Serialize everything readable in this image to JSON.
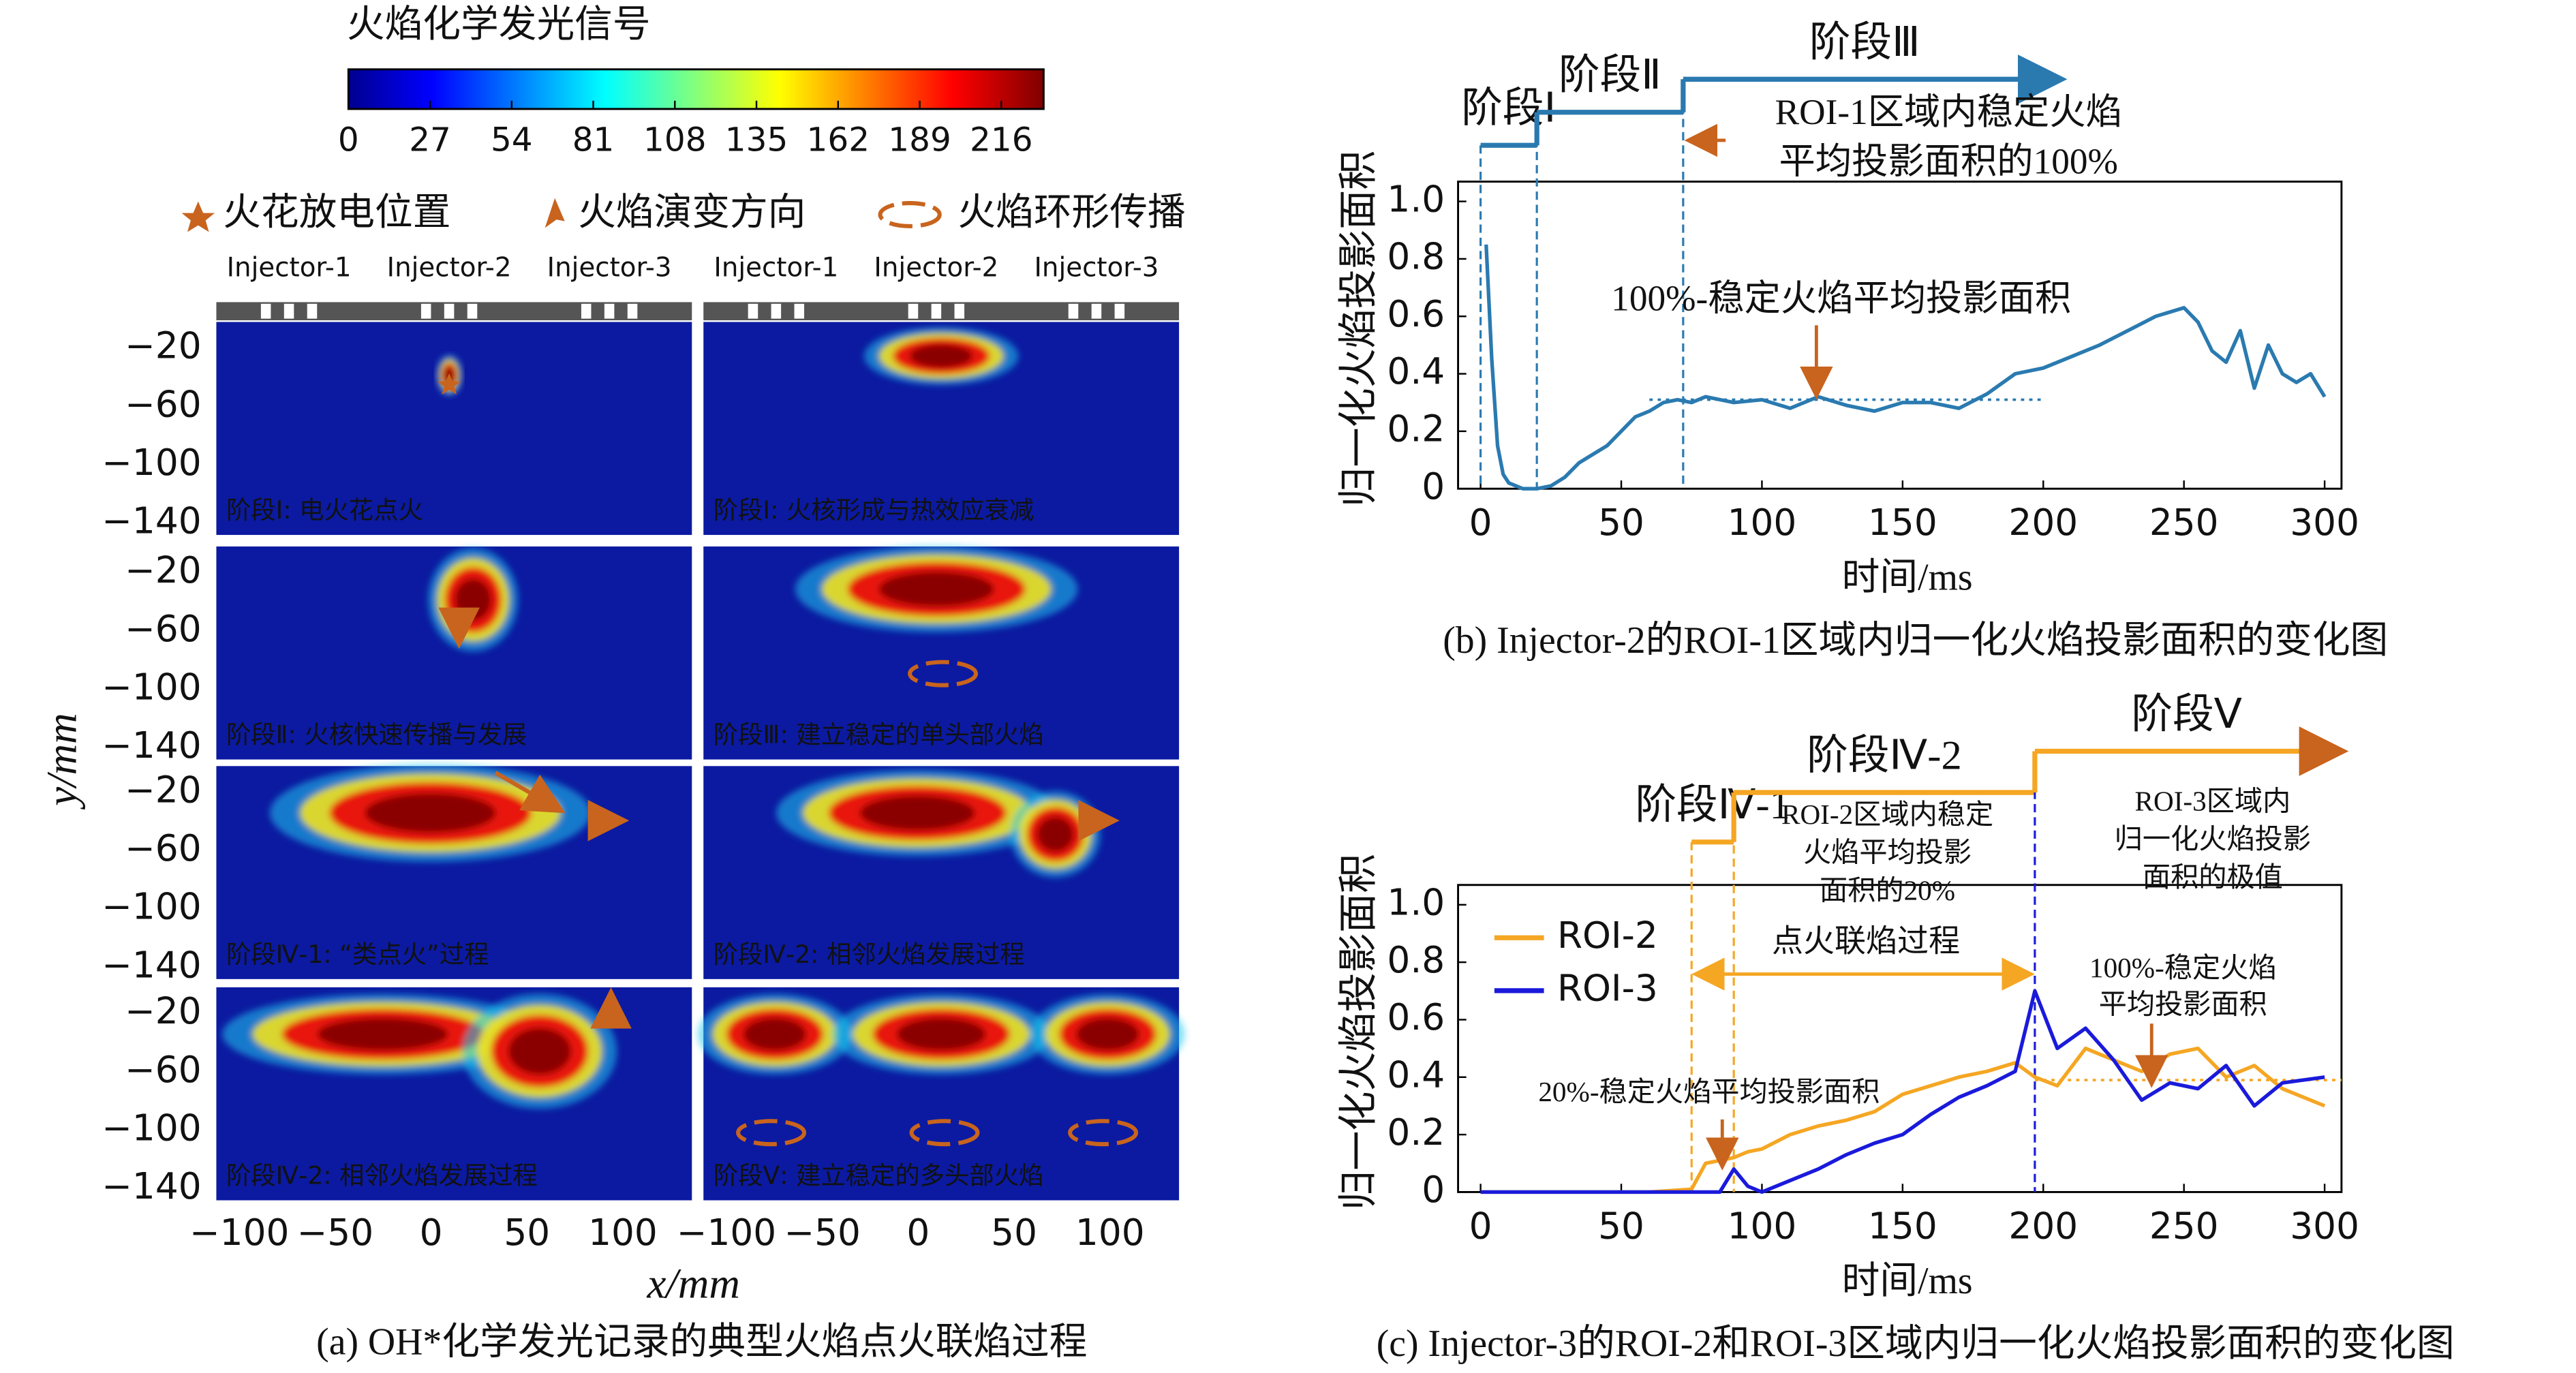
{
  "chart_data": [
    {
      "type": "image-grid",
      "colorbar_title": "火焰化学发光信号",
      "clim": [
        0,
        230
      ],
      "cticks": [
        0,
        27,
        54,
        81,
        108,
        135,
        162,
        189,
        216
      ],
      "legend": [
        "火花放电位置",
        "火焰演变方向",
        "火焰环形传播"
      ],
      "injectors": [
        "Injector-1",
        "Injector-2",
        "Injector-3"
      ],
      "panels": [
        "阶段Ⅰ: 电火花点火",
        "阶段Ⅰ: 火核形成与热效应衰减",
        "阶段Ⅱ: 火核快速传播与发展",
        "阶段Ⅲ: 建立稳定的单头部火焰",
        "阶段Ⅳ-1: “类点火”过程",
        "阶段Ⅳ-2: 相邻火焰发展过程",
        "阶段Ⅳ-2: 相邻火焰发展过程",
        "阶段Ⅴ: 建立稳定的多头部火焰"
      ],
      "xlim": [
        -112,
        136
      ],
      "xticks": [
        {
          "value": -100,
          "label": "−100"
        },
        {
          "value": -50,
          "label": "−50"
        },
        0,
        50,
        100
      ],
      "ylim": [
        -148,
        -2
      ],
      "yticks": [
        {
          "value": -20,
          "label": "−20"
        },
        {
          "value": -60,
          "label": "−60"
        },
        {
          "value": -100,
          "label": "−100"
        },
        {
          "value": -140,
          "label": "−140"
        }
      ],
      "xlabel": "x/mm",
      "ylabel": "y/mm",
      "caption": "(a) OH*化学发光记录的典型火焰点火联焰过程"
    },
    {
      "type": "line",
      "x": [
        2,
        4,
        6,
        8,
        10,
        15,
        20,
        25,
        30,
        35,
        40,
        45,
        50,
        55,
        60,
        65,
        70,
        75,
        80,
        90,
        100,
        110,
        120,
        130,
        140,
        150,
        160,
        170,
        180,
        190,
        200,
        210,
        220,
        230,
        240,
        250,
        255,
        260,
        265,
        270,
        275,
        280,
        285,
        290,
        295,
        300
      ],
      "series": [
        {
          "color": "#2a7ab0",
          "values": [
            0.85,
            0.45,
            0.15,
            0.05,
            0.02,
            0,
            0,
            0.01,
            0.04,
            0.09,
            0.12,
            0.15,
            0.2,
            0.25,
            0.27,
            0.3,
            0.31,
            0.3,
            0.32,
            0.3,
            0.31,
            0.28,
            0.32,
            0.29,
            0.27,
            0.3,
            0.3,
            0.28,
            0.33,
            0.4,
            0.42,
            0.46,
            0.5,
            0.55,
            0.6,
            0.63,
            0.58,
            0.48,
            0.44,
            0.55,
            0.35,
            0.5,
            0.4,
            0.37,
            0.4,
            0.32
          ]
        }
      ],
      "xlim": [
        -8,
        306
      ],
      "xticks": [
        0,
        50,
        100,
        150,
        200,
        250,
        300
      ],
      "ylim": [
        0,
        1
      ],
      "yticks": [
        0,
        0.2,
        0.4,
        0.6,
        0.8,
        {
          "value": 1,
          "label": "1.0"
        }
      ],
      "xlabel": "时间/ms",
      "ylabel": "归一化火焰投影面积",
      "caption": "(b) Injector-2的ROI-1区域内归一化火焰投影面积的变化图",
      "stage_color": "#2a7ab0",
      "stages": [
        {
          "label": "阶段Ⅰ",
          "start": 0,
          "end": 20
        },
        {
          "label": "阶段Ⅱ",
          "start": 20,
          "end": 72
        },
        {
          "label": "阶段Ⅲ",
          "start": 72,
          "end": 205
        }
      ],
      "reference": {
        "value": 0.31,
        "start": 60,
        "end": 200
      },
      "annotations": [
        [
          "ROI-1区域内稳定火焰",
          "平均投影面积的100%"
        ],
        [
          "100%-稳定火焰平均投影面积"
        ]
      ]
    },
    {
      "type": "line",
      "x": [
        0,
        20,
        40,
        60,
        75,
        80,
        85,
        90,
        95,
        100,
        110,
        120,
        130,
        140,
        150,
        160,
        170,
        180,
        190,
        197,
        205,
        215,
        225,
        235,
        245,
        255,
        265,
        275,
        285,
        300
      ],
      "series": [
        {
          "name": "ROI-2",
          "color": "#f5a623",
          "values": [
            0,
            0,
            0,
            0,
            0.01,
            0.1,
            0.11,
            0.12,
            0.14,
            0.15,
            0.2,
            0.23,
            0.25,
            0.28,
            0.34,
            0.37,
            0.4,
            0.42,
            0.45,
            0.4,
            0.37,
            0.5,
            0.46,
            0.42,
            0.48,
            0.5,
            0.4,
            0.44,
            0.36,
            0.3
          ]
        },
        {
          "name": "ROI-3",
          "color": "#1a1adb",
          "values": [
            0,
            0,
            0,
            0,
            0,
            0,
            0,
            0.08,
            0.02,
            0,
            0.04,
            0.08,
            0.13,
            0.17,
            0.2,
            0.27,
            0.33,
            0.37,
            0.42,
            0.7,
            0.5,
            0.57,
            0.46,
            0.32,
            0.38,
            0.36,
            0.44,
            0.3,
            0.38,
            0.4
          ]
        }
      ],
      "xlim": [
        -8,
        306
      ],
      "xticks": [
        0,
        50,
        100,
        150,
        200,
        250,
        300
      ],
      "ylim": [
        0,
        1
      ],
      "yticks": [
        0,
        0.2,
        0.4,
        0.6,
        0.8,
        {
          "value": 1,
          "label": "1.0"
        }
      ],
      "xlabel": "时间/ms",
      "ylabel": "归一化火焰投影面积",
      "caption": "(c) Injector-3的ROI-2和ROI-3区域内归一化火焰投影面积的变化图",
      "stage_color": "#f5a623",
      "stages": [
        {
          "label": "阶段Ⅳ-1",
          "start": 75,
          "end": 90
        },
        {
          "label": "阶段Ⅳ-2",
          "start": 90,
          "end": 197
        },
        {
          "label": "阶段Ⅴ",
          "start": 197,
          "end": 305
        }
      ],
      "reference": {
        "value": 0.39,
        "start": 197,
        "end": 306
      },
      "annotations": [
        [
          "ROI-2区域内稳定",
          "火焰平均投影",
          "面积的20%"
        ],
        [
          "ROI-3区域内",
          "归一化火焰投影",
          "面积的极值"
        ],
        [
          "点火联焰过程"
        ],
        [
          "100%-稳定火焰",
          "平均投影面积"
        ],
        [
          "20%-稳定火焰平均投影面积"
        ]
      ]
    }
  ]
}
